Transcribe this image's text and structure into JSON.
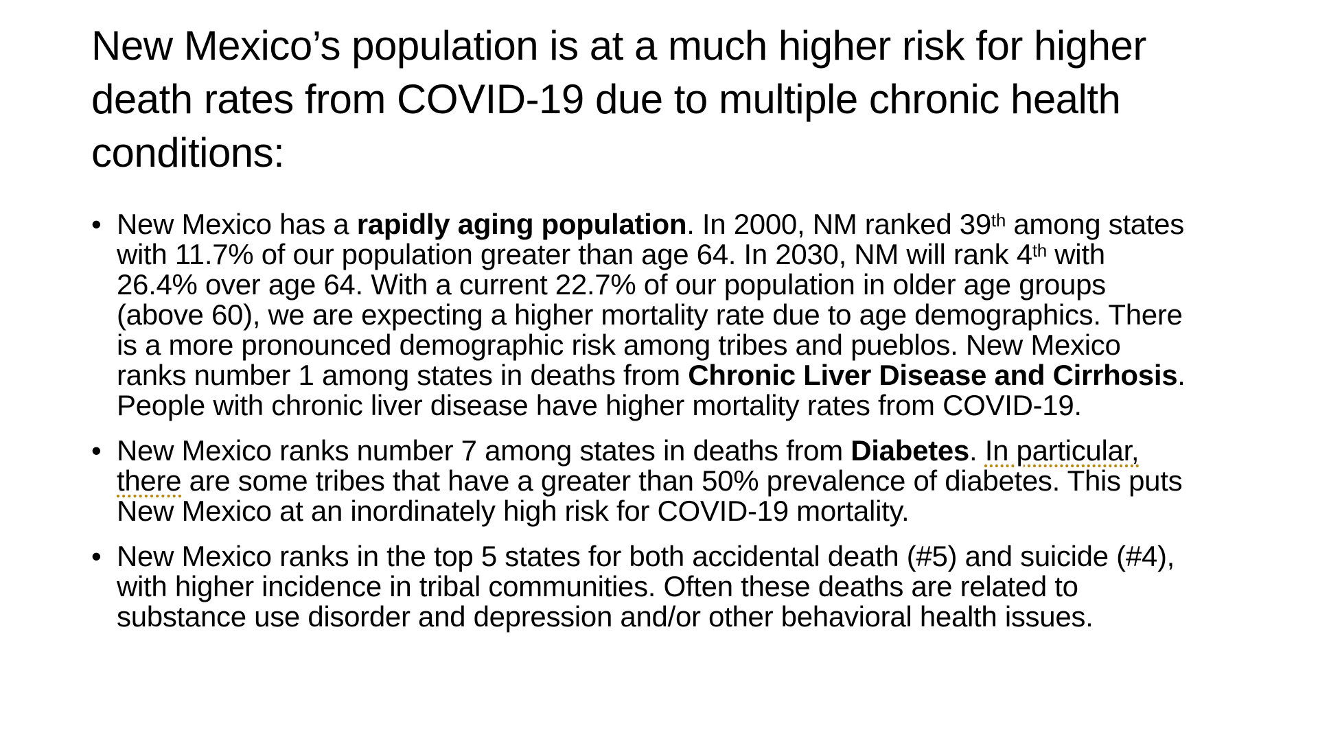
{
  "slide": {
    "title": "New Mexico’s population is at a much higher risk for higher death rates from COVID-19 due to multiple chronic health conditions:",
    "bullets": [
      {
        "seg1": "New Mexico has a ",
        "bold1": "rapidly aging population",
        "seg2": ".  In 2000, NM ranked 39",
        "sup1": "th",
        "seg3": " among states with 11.7% of our population greater than age 64. In 2030, NM will rank 4",
        "sup2": "th",
        "seg4": " with 26.4% over age 64.  With a current 22.7% of our population in older age groups (above 60), we are expecting a higher mortality rate due to age demographics.  There is a more pronounced demographic risk among tribes and pueblos. New Mexico ranks number 1 among states in deaths from ",
        "bold2": "Chronic Liver Disease and Cirrhosis",
        "seg5": ".  People with chronic liver disease have higher mortality rates from COVID-19."
      },
      {
        "seg1": "New Mexico ranks number 7 among states in deaths from ",
        "bold1": "Diabetes",
        "seg2": ".  ",
        "flagged": "In particular, there",
        "seg3": " are some tribes that have a greater than 50% prevalence of diabetes.  This puts New Mexico at an inordinately high risk for COVID-19 mortality."
      },
      {
        "text": "New Mexico ranks in the top 5 states for both accidental death (#5) and suicide (#4), with higher incidence in tribal communities.  Often these deaths are related to substance use disorder and depression and/or other behavioral health issues."
      }
    ]
  }
}
